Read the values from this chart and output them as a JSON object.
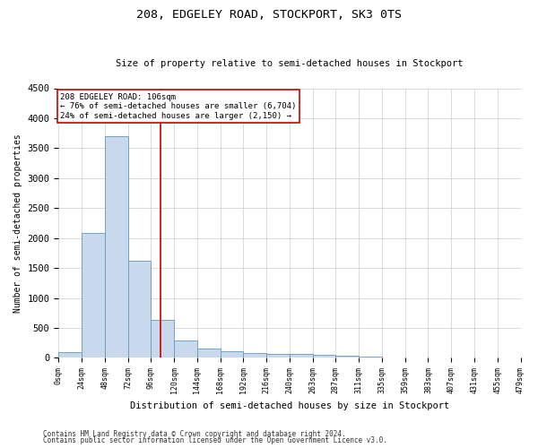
{
  "title": "208, EDGELEY ROAD, STOCKPORT, SK3 0TS",
  "subtitle": "Size of property relative to semi-detached houses in Stockport",
  "xlabel": "Distribution of semi-detached houses by size in Stockport",
  "ylabel": "Number of semi-detached properties",
  "footer1": "Contains HM Land Registry data © Crown copyright and database right 2024.",
  "footer2": "Contains public sector information licensed under the Open Government Licence v3.0.",
  "annotation_line1": "208 EDGELEY ROAD: 106sqm",
  "annotation_line2": "← 76% of semi-detached houses are smaller (6,704)",
  "annotation_line3": "24% of semi-detached houses are larger (2,150) →",
  "property_size": 106,
  "bar_color": "#c8d9ed",
  "bar_edge_color": "#6699bb",
  "vline_color": "#cc0000",
  "annotation_box_color": "#ffffff",
  "annotation_box_edge": "#cc0000",
  "background_color": "#ffffff",
  "grid_color": "#cccccc",
  "bin_edges": [
    0,
    24,
    48,
    72,
    96,
    120,
    144,
    168,
    192,
    216,
    240,
    264,
    288,
    312,
    336,
    360,
    384,
    408,
    432,
    456,
    480
  ],
  "bar_heights": [
    100,
    2080,
    3700,
    1620,
    640,
    290,
    155,
    110,
    80,
    65,
    60,
    45,
    35,
    20,
    10,
    5,
    0,
    0,
    0,
    0
  ],
  "ylim": [
    0,
    4500
  ],
  "yticks": [
    0,
    500,
    1000,
    1500,
    2000,
    2500,
    3000,
    3500,
    4000,
    4500
  ],
  "xtick_labels": [
    "0sqm",
    "24sqm",
    "48sqm",
    "72sqm",
    "96sqm",
    "120sqm",
    "144sqm",
    "168sqm",
    "192sqm",
    "216sqm",
    "240sqm",
    "263sqm",
    "287sqm",
    "311sqm",
    "335sqm",
    "359sqm",
    "383sqm",
    "407sqm",
    "431sqm",
    "455sqm",
    "479sqm"
  ]
}
